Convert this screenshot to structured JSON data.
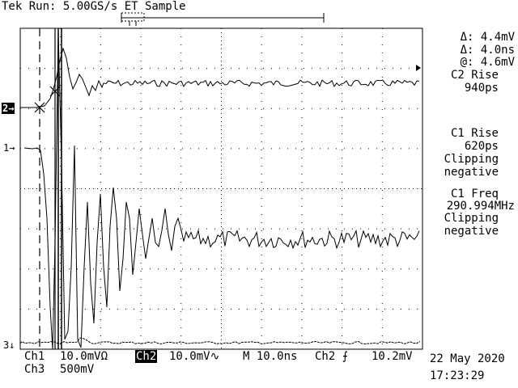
{
  "header": {
    "status": "Tek Run: 5.00GS/s ET Sample"
  },
  "cursor_readout": {
    "delta_v": "Δ: 4.4mV",
    "delta_t": "Δ: 4.0ns",
    "at_v": "@: 4.6mV"
  },
  "measurements": [
    {
      "label": "C2 Rise",
      "value": "940ps",
      "note": ""
    },
    {
      "label": "C1 Rise",
      "value": "620ps",
      "note": "Clipping negative"
    },
    {
      "label": "C1 Freq",
      "value": "290.994MHz",
      "note": "Clipping negative"
    }
  ],
  "channel_markers": {
    "ch2": "2→",
    "ch1": "1→",
    "ch3": "3↓"
  },
  "footer": {
    "ch1_label": "Ch1",
    "ch1_scale": "10.0mVΩ",
    "ch2_label": "Ch2",
    "ch2_scale": "10.0mV∿",
    "timebase": "M 10.0ns",
    "trigger_source": "Ch2 ⨍",
    "trigger_level": "10.2mV",
    "ch3_label": "Ch3",
    "ch3_scale": "500mV",
    "date": "22 May 2020",
    "time": "17:23:29"
  },
  "colors": {
    "background": "#ffffff",
    "grid": "#000000",
    "trace": "#000000"
  }
}
